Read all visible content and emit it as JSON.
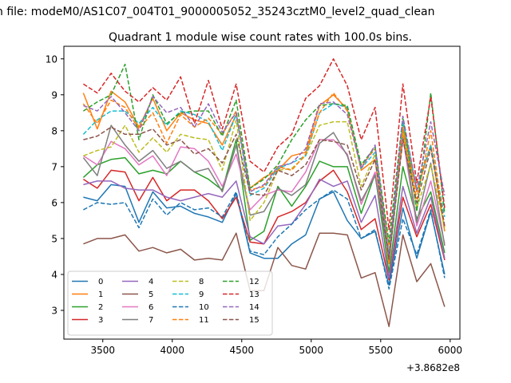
{
  "figure": {
    "suptitle": "n file: modeM0/AS1C07_004T01_9000005052_35243cztM0_level2_quad_clean",
    "offset_label": "+3.8682e8"
  },
  "chart_data": {
    "type": "line",
    "title": "Quadrant 1 module wise count rates with 100.0s bins.",
    "xlabel": "",
    "ylabel": "",
    "xlim": [
      3220,
      6070
    ],
    "ylim": [
      2.2,
      10.35
    ],
    "xticks": [
      3500,
      4000,
      4500,
      5000,
      5500,
      6000
    ],
    "xtick_labels": [
      "3500",
      "4000",
      "4500",
      "5000",
      "5500",
      "6000"
    ],
    "yticks": [
      3,
      4,
      5,
      6,
      7,
      8,
      9,
      10
    ],
    "ytick_labels": [
      "3",
      "4",
      "5",
      "6",
      "7",
      "8",
      "9",
      "10"
    ],
    "grid": false,
    "legend": {
      "placement": "lower-left",
      "columns": 4
    },
    "x": [
      3360,
      3460,
      3560,
      3660,
      3760,
      3860,
      3960,
      4060,
      4160,
      4260,
      4360,
      4460,
      4560,
      4660,
      4760,
      4860,
      4960,
      5060,
      5160,
      5260,
      5360,
      5460,
      5560,
      5660,
      5760,
      5860,
      5960
    ],
    "series": [
      {
        "name": "0",
        "color": "#1f77b4",
        "dash": "solid",
        "values": [
          6.15,
          6.05,
          6.5,
          6.45,
          5.45,
          6.3,
          5.85,
          5.9,
          5.7,
          5.6,
          5.45,
          6.25,
          4.6,
          4.45,
          4.45,
          4.85,
          5.1,
          6.1,
          6.3,
          5.5,
          5.0,
          5.2,
          3.7,
          5.85,
          4.45,
          5.75,
          4.0
        ]
      },
      {
        "name": "1",
        "color": "#ff7f0e",
        "dash": "solid",
        "values": [
          9.05,
          8.05,
          9.1,
          8.8,
          8.1,
          8.9,
          8.0,
          8.5,
          8.3,
          8.2,
          7.6,
          8.45,
          6.4,
          6.7,
          6.9,
          7.3,
          7.4,
          8.7,
          9.0,
          8.6,
          6.9,
          7.2,
          4.3,
          8.1,
          6.3,
          7.6,
          5.2
        ]
      },
      {
        "name": "2",
        "color": "#2ca02c",
        "dash": "solid",
        "values": [
          6.7,
          7.05,
          7.2,
          7.25,
          6.8,
          6.9,
          6.8,
          7.15,
          6.85,
          6.65,
          6.35,
          7.75,
          4.95,
          5.2,
          6.45,
          5.9,
          6.45,
          7.15,
          7.0,
          7.0,
          5.7,
          6.8,
          4.05,
          7.0,
          5.55,
          6.3,
          4.6
        ]
      },
      {
        "name": "3",
        "color": "#d62728",
        "dash": "solid",
        "values": [
          6.65,
          6.4,
          6.9,
          6.85,
          6.05,
          6.7,
          6.05,
          6.35,
          6.35,
          6.05,
          5.55,
          6.15,
          4.9,
          4.85,
          5.6,
          5.75,
          6.0,
          6.6,
          6.9,
          6.3,
          5.25,
          5.55,
          3.85,
          6.15,
          5.05,
          5.95,
          4.4
        ]
      },
      {
        "name": "4",
        "color": "#9467bd",
        "dash": "solid",
        "values": [
          6.5,
          6.6,
          6.6,
          6.4,
          6.35,
          6.35,
          6.15,
          6.05,
          6.15,
          6.25,
          6.15,
          6.6,
          5.05,
          4.85,
          5.35,
          5.4,
          5.95,
          6.65,
          6.45,
          6.6,
          5.45,
          6.2,
          3.9,
          6.45,
          5.15,
          6.15,
          4.45
        ]
      },
      {
        "name": "5",
        "color": "#8c564b",
        "dash": "solid",
        "values": [
          4.85,
          5.0,
          5.0,
          5.1,
          4.65,
          4.75,
          4.6,
          4.7,
          4.4,
          4.45,
          4.4,
          5.15,
          3.55,
          3.55,
          4.75,
          4.25,
          4.15,
          5.15,
          5.15,
          5.1,
          3.9,
          4.05,
          2.55,
          5.1,
          3.8,
          4.3,
          3.1
        ]
      },
      {
        "name": "6",
        "color": "#e377c2",
        "dash": "solid",
        "values": [
          7.3,
          7.05,
          7.7,
          7.5,
          7.05,
          7.3,
          6.75,
          7.55,
          7.5,
          7.15,
          6.45,
          7.35,
          5.8,
          6.2,
          6.35,
          6.3,
          6.85,
          7.75,
          7.75,
          7.35,
          5.95,
          6.85,
          4.45,
          7.8,
          5.35,
          6.6,
          4.85
        ]
      },
      {
        "name": "7",
        "color": "#7f7f7f",
        "dash": "solid",
        "values": [
          7.25,
          6.75,
          8.15,
          7.6,
          7.15,
          7.45,
          6.95,
          7.15,
          6.85,
          6.95,
          6.3,
          7.6,
          5.65,
          5.75,
          6.4,
          6.2,
          6.5,
          7.65,
          7.95,
          7.3,
          6.05,
          6.75,
          4.45,
          7.95,
          5.45,
          7.1,
          4.8
        ]
      },
      {
        "name": "8",
        "color": "#bcbd22",
        "dash": "dashed",
        "values": [
          7.3,
          7.45,
          7.55,
          8.15,
          7.4,
          7.8,
          7.4,
          7.9,
          7.8,
          7.75,
          6.9,
          8.3,
          5.5,
          6.0,
          6.9,
          6.95,
          7.3,
          8.15,
          8.25,
          8.25,
          6.45,
          7.35,
          4.7,
          7.95,
          5.85,
          7.05,
          5.3
        ]
      },
      {
        "name": "9",
        "color": "#17becf",
        "dash": "dashed",
        "values": [
          7.9,
          8.3,
          8.55,
          8.55,
          8.2,
          8.65,
          8.15,
          8.55,
          8.45,
          8.25,
          7.45,
          8.45,
          6.2,
          6.4,
          6.95,
          7.1,
          7.3,
          8.5,
          8.75,
          8.65,
          6.95,
          7.4,
          4.5,
          8.25,
          6.4,
          7.6,
          5.6
        ]
      },
      {
        "name": "10",
        "color": "#1f77b4",
        "dash": "dashed",
        "values": [
          5.8,
          6.0,
          5.95,
          6.0,
          5.3,
          6.1,
          5.65,
          6.0,
          5.8,
          5.85,
          5.6,
          6.3,
          4.65,
          4.55,
          5.05,
          5.4,
          5.8,
          6.1,
          6.35,
          6.1,
          5.0,
          5.25,
          3.6,
          5.55,
          4.55,
          5.8,
          3.9
        ]
      },
      {
        "name": "11",
        "color": "#ff7f0e",
        "dash": "dashed",
        "values": [
          8.75,
          8.2,
          8.85,
          8.65,
          8.05,
          8.5,
          7.65,
          8.45,
          8.1,
          8.35,
          7.9,
          8.55,
          6.35,
          6.45,
          7.0,
          6.9,
          7.35,
          8.5,
          9.05,
          8.55,
          7.0,
          7.5,
          4.8,
          8.0,
          6.1,
          8.0,
          5.3
        ]
      },
      {
        "name": "12",
        "color": "#2ca02c",
        "dash": "dashed",
        "values": [
          8.55,
          8.8,
          9.0,
          9.85,
          7.75,
          9.0,
          8.2,
          8.5,
          8.55,
          8.55,
          7.85,
          8.85,
          6.4,
          6.65,
          7.05,
          7.75,
          8.3,
          8.7,
          8.75,
          8.7,
          7.05,
          7.55,
          4.9,
          8.4,
          5.75,
          9.05,
          5.7
        ]
      },
      {
        "name": "13",
        "color": "#d62728",
        "dash": "dashed",
        "values": [
          9.3,
          9.05,
          9.6,
          9.1,
          8.8,
          9.2,
          8.85,
          9.5,
          8.2,
          9.4,
          8.05,
          9.3,
          7.15,
          6.85,
          7.55,
          7.9,
          8.9,
          9.25,
          10.0,
          9.25,
          7.75,
          8.65,
          5.25,
          9.3,
          6.55,
          8.95,
          5.85
        ]
      },
      {
        "name": "14",
        "color": "#9467bd",
        "dash": "dashed",
        "values": [
          8.7,
          8.55,
          8.95,
          8.5,
          8.0,
          8.95,
          8.5,
          8.65,
          8.1,
          8.75,
          7.95,
          8.5,
          6.3,
          6.5,
          7.0,
          7.1,
          7.5,
          8.75,
          8.8,
          8.45,
          6.95,
          7.6,
          4.5,
          8.4,
          6.35,
          8.25,
          6.2
        ]
      },
      {
        "name": "15",
        "color": "#8c564b",
        "dash": "dashed",
        "values": [
          7.75,
          7.85,
          8.1,
          7.9,
          7.9,
          8.05,
          7.6,
          7.75,
          7.35,
          7.5,
          7.1,
          7.9,
          6.25,
          6.2,
          6.9,
          6.75,
          7.05,
          7.75,
          7.7,
          7.6,
          6.35,
          7.2,
          4.4,
          7.75,
          6.0,
          7.5,
          5.35
        ]
      }
    ]
  }
}
